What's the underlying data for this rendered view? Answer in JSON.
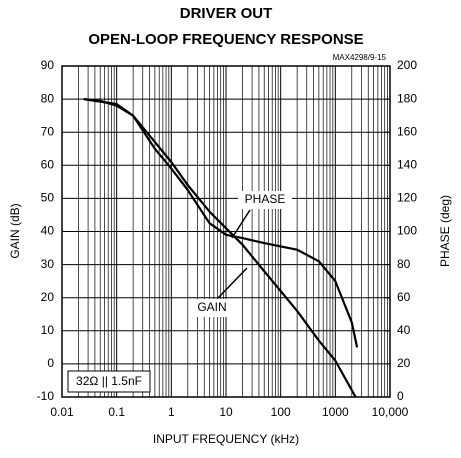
{
  "chart_data": {
    "type": "line",
    "title": [
      "DRIVER OUT",
      "OPEN-LOOP FREQUENCY RESPONSE"
    ],
    "figure_id": "MAX4298/9-15",
    "x_label": "INPUT FREQUENCY (kHz)",
    "y_label": "GAIN (dB)",
    "y2_label": "PHASE (deg)",
    "xscale": "log",
    "xlim": [
      0.01,
      10000
    ],
    "xticks": [
      0.01,
      0.1,
      1,
      10,
      100,
      1000,
      {
        "value": 10000,
        "label": "10,000"
      }
    ],
    "ylim": [
      -10,
      90
    ],
    "yticks": [
      -10,
      0,
      10,
      20,
      30,
      40,
      50,
      60,
      70,
      80,
      90
    ],
    "y2lim": [
      0,
      200
    ],
    "y2ticks": [
      0,
      20,
      40,
      60,
      80,
      100,
      120,
      140,
      160,
      180,
      200
    ],
    "grid": true,
    "minor_grid": true,
    "annotations": [
      "PHASE",
      "GAIN",
      "32Ω || 1.5nF"
    ],
    "series": [
      {
        "name": "GAIN",
        "color": "#000000",
        "x": [
          0.025,
          0.05,
          0.1,
          0.2,
          0.5,
          1,
          2,
          5,
          10,
          20,
          50,
          100,
          200,
          500,
          1000,
          2350
        ],
        "values": [
          80,
          79.5,
          78,
          75,
          67,
          61,
          54,
          46,
          41,
          36,
          28,
          22,
          16,
          7,
          1,
          -10
        ]
      },
      {
        "name": "PHASE",
        "color": "#000000",
        "axis": "y2",
        "x": [
          0.025,
          0.1,
          0.2,
          0.5,
          1,
          2,
          5,
          10,
          20,
          50,
          100,
          200,
          500,
          1000,
          2000,
          2500
        ],
        "values": [
          180,
          177,
          170,
          150,
          138,
          125,
          105,
          98,
          96,
          93,
          91,
          89,
          82,
          70,
          45,
          30
        ]
      }
    ]
  }
}
